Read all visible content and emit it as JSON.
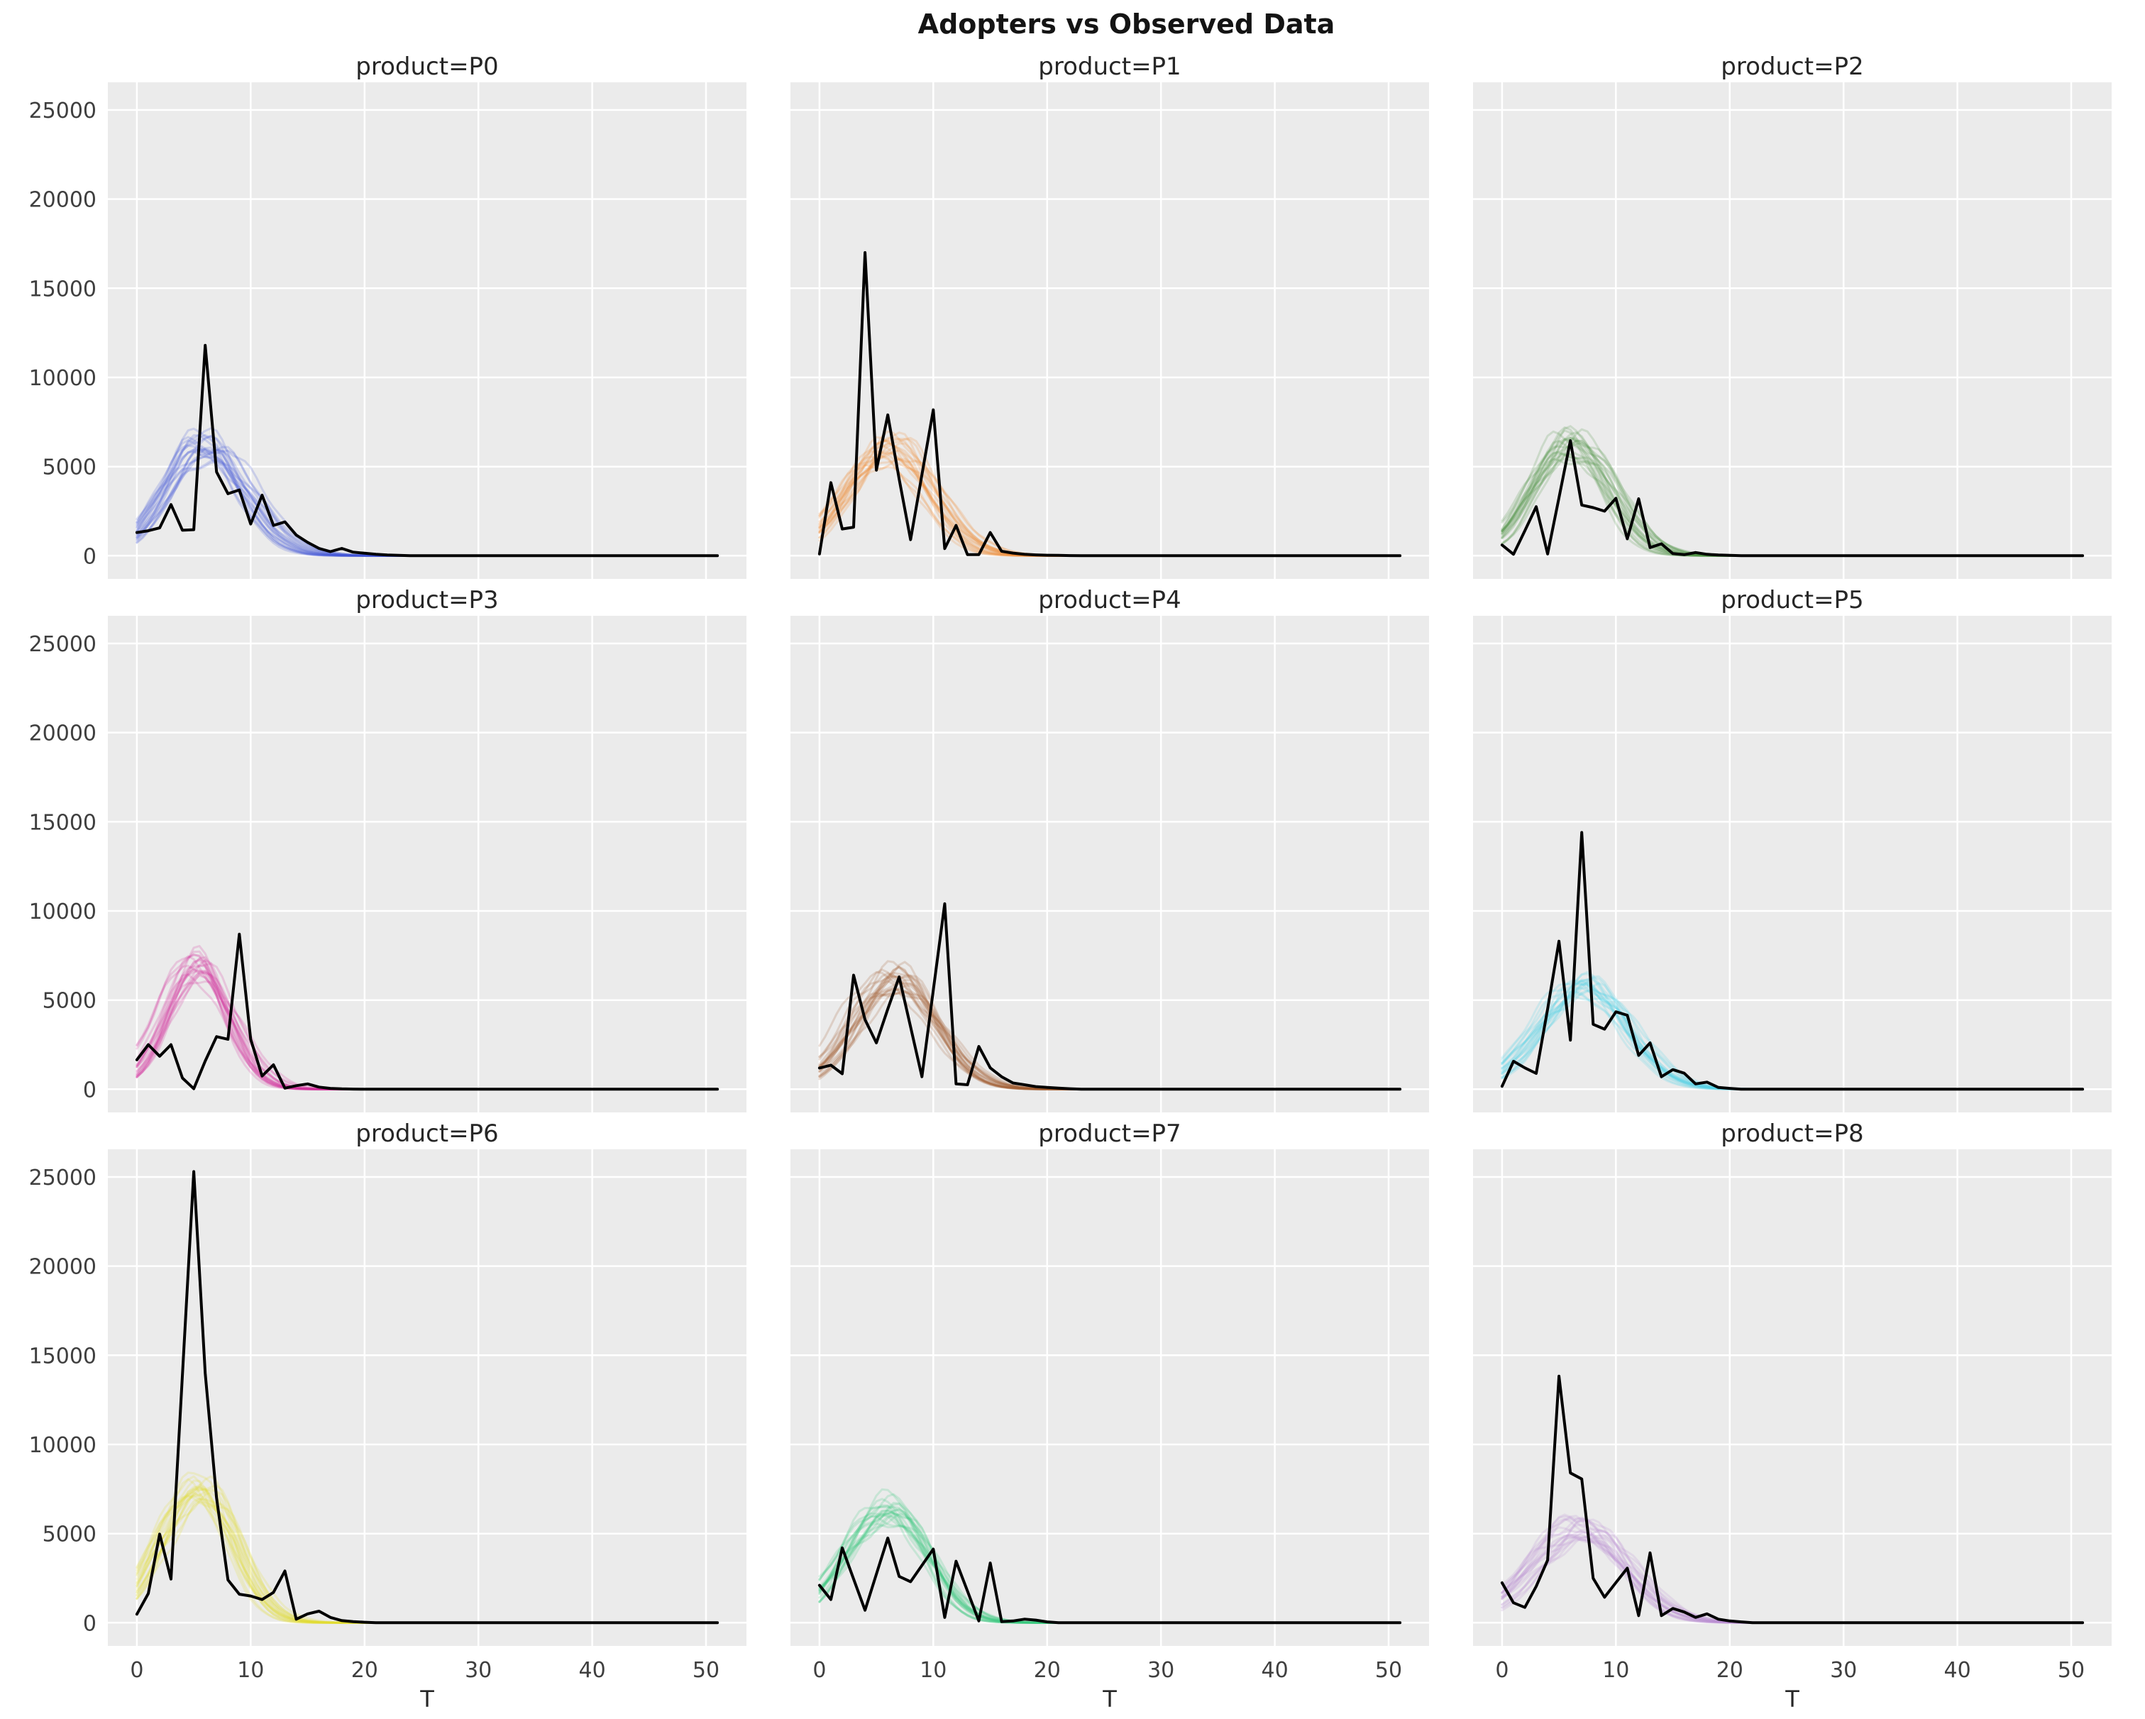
{
  "page_title": "Adopters vs Observed Data",
  "xlabel": "T",
  "axis": {
    "xticks": [
      0,
      10,
      20,
      30,
      40,
      50
    ],
    "yticks": [
      0,
      5000,
      10000,
      15000,
      20000,
      25000
    ],
    "xlim": [
      -2.55,
      53.55
    ],
    "ylim": [
      -1300,
      26550
    ],
    "x_max_t": 51,
    "grid": true,
    "legend": "none",
    "shared_y": true,
    "shared_x": true
  },
  "style": {
    "figure_bg": "#ffffff",
    "plot_bg": "#ebebeb",
    "grid_color": "#ffffff",
    "observed_color": "#000000",
    "title_color": "#262626",
    "tick_label_color": "#3f3f3f"
  },
  "chart_data": [
    {
      "type": "line",
      "title": "product=P0",
      "product": "P0",
      "sim_color": "#4353d8",
      "observed": [
        1300,
        1400,
        1560,
        2870,
        1430,
        1460,
        11800,
        4700,
        3480,
        3690,
        1780,
        3400,
        1700,
        1900,
        1160,
        750,
        410,
        230,
        410,
        200,
        140,
        80,
        40,
        20,
        0
      ],
      "sim_band": {
        "amplitude": 6100,
        "t_peak": 5.8,
        "sigma_left": 3.4,
        "sigma_right": 3.6,
        "n_lines": 20,
        "alpha": 0.2,
        "amp_jitter": 0.12,
        "peak_jitter": 0.8,
        "wobble": 0.05
      }
    },
    {
      "type": "line",
      "title": "product=P1",
      "product": "P1",
      "sim_color": "#f0862c",
      "observed": [
        100,
        4100,
        1500,
        1600,
        17000,
        4800,
        7900,
        4300,
        900,
        4550,
        8180,
        400,
        1700,
        60,
        60,
        1300,
        250,
        150,
        80,
        50,
        30,
        20,
        10,
        0
      ],
      "sim_band": {
        "amplitude": 5900,
        "t_peak": 6.2,
        "sigma_left": 3.9,
        "sigma_right": 3.6,
        "n_lines": 20,
        "alpha": 0.2,
        "amp_jitter": 0.12,
        "peak_jitter": 0.8,
        "wobble": 0.05
      }
    },
    {
      "type": "line",
      "title": "product=P2",
      "product": "P2",
      "sim_color": "#4a9143",
      "observed": [
        600,
        80,
        1400,
        2750,
        100,
        3250,
        6450,
        2840,
        2700,
        2500,
        3220,
        950,
        3190,
        460,
        670,
        120,
        60,
        180,
        80,
        40,
        20,
        0
      ],
      "sim_band": {
        "amplitude": 6200,
        "t_peak": 6.0,
        "sigma_left": 3.4,
        "sigma_right": 3.3,
        "n_lines": 20,
        "alpha": 0.2,
        "amp_jitter": 0.12,
        "peak_jitter": 0.8,
        "wobble": 0.05
      }
    },
    {
      "type": "line",
      "title": "product=P3",
      "product": "P3",
      "sim_color": "#d02e9d",
      "observed": [
        1650,
        2500,
        1850,
        2500,
        630,
        30,
        1580,
        2950,
        2800,
        8700,
        2800,
        740,
        1370,
        60,
        200,
        300,
        120,
        50,
        20,
        10,
        0
      ],
      "sim_band": {
        "amplitude": 6800,
        "t_peak": 5.2,
        "sigma_left": 2.9,
        "sigma_right": 2.9,
        "n_lines": 20,
        "alpha": 0.2,
        "amp_jitter": 0.12,
        "peak_jitter": 0.7,
        "wobble": 0.05
      }
    },
    {
      "type": "line",
      "title": "product=P4",
      "product": "P4",
      "sim_color": "#9e5b2e",
      "observed": [
        1190,
        1350,
        870,
        6400,
        3900,
        2600,
        4500,
        6300,
        3500,
        700,
        5550,
        10400,
        300,
        250,
        2400,
        1200,
        700,
        350,
        250,
        150,
        100,
        60,
        30,
        0
      ],
      "sim_band": {
        "amplitude": 6100,
        "t_peak": 6.5,
        "sigma_left": 3.7,
        "sigma_right": 3.6,
        "n_lines": 20,
        "alpha": 0.2,
        "amp_jitter": 0.12,
        "peak_jitter": 0.8,
        "wobble": 0.05
      }
    },
    {
      "type": "line",
      "title": "product=P5",
      "product": "P5",
      "sim_color": "#4fd4e8",
      "observed": [
        165,
        1570,
        1200,
        890,
        4500,
        8300,
        2750,
        14400,
        3640,
        3370,
        4340,
        4150,
        1900,
        2600,
        700,
        1100,
        900,
        300,
        400,
        100,
        50,
        0
      ],
      "sim_band": {
        "amplitude": 5700,
        "t_peak": 7.0,
        "sigma_left": 3.9,
        "sigma_right": 3.9,
        "n_lines": 20,
        "alpha": 0.2,
        "amp_jitter": 0.12,
        "peak_jitter": 0.8,
        "wobble": 0.05
      }
    },
    {
      "type": "line",
      "title": "product=P6",
      "product": "P6",
      "sim_color": "#e3dc32",
      "observed": [
        480,
        1640,
        4970,
        2450,
        13900,
        25300,
        14000,
        7000,
        2400,
        1600,
        1500,
        1300,
        1700,
        2900,
        200,
        500,
        650,
        300,
        120,
        60,
        30,
        0
      ],
      "sim_band": {
        "amplitude": 7400,
        "t_peak": 5.6,
        "sigma_left": 3.5,
        "sigma_right": 3.0,
        "n_lines": 20,
        "alpha": 0.2,
        "amp_jitter": 0.12,
        "peak_jitter": 0.7,
        "wobble": 0.05
      }
    },
    {
      "type": "line",
      "title": "product=P7",
      "product": "P7",
      "sim_color": "#35c97e",
      "observed": [
        2100,
        1300,
        4200,
        2450,
        700,
        2725,
        4750,
        2600,
        2300,
        3215,
        4130,
        300,
        3450,
        1775,
        100,
        3350,
        60,
        100,
        200,
        150,
        50,
        0
      ],
      "sim_band": {
        "amplitude": 6400,
        "t_peak": 6.2,
        "sigma_left": 3.8,
        "sigma_right": 3.4,
        "n_lines": 20,
        "alpha": 0.2,
        "amp_jitter": 0.12,
        "peak_jitter": 0.8,
        "wobble": 0.05
      }
    },
    {
      "type": "line",
      "title": "product=P8",
      "product": "P8",
      "sim_color": "#b78cd2",
      "observed": [
        2240,
        1120,
        860,
        2040,
        3510,
        13830,
        8400,
        8060,
        2490,
        1430,
        2250,
        3060,
        400,
        3920,
        400,
        800,
        600,
        300,
        500,
        200,
        100,
        50,
        0
      ],
      "sim_band": {
        "amplitude": 5300,
        "t_peak": 7.0,
        "sigma_left": 4.2,
        "sigma_right": 3.9,
        "n_lines": 20,
        "alpha": 0.2,
        "amp_jitter": 0.12,
        "peak_jitter": 0.8,
        "wobble": 0.05
      }
    }
  ]
}
